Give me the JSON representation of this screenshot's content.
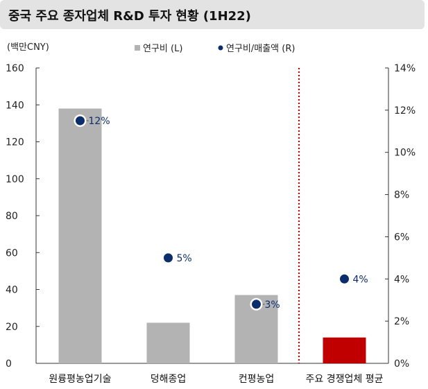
{
  "header": {
    "title": "중국 주요 종자업체 R&D 투자 현황 (1H22)"
  },
  "chart_data": {
    "type": "bar",
    "title": "중국 주요 종자업체 R&D 투자 현황 (1H22)",
    "ylabel_left": "(백만CNY)",
    "categories": [
      "원륭평농업기술",
      "덩해종업",
      "컨평농업",
      "주요 경쟁업체 평균"
    ],
    "series": [
      {
        "name": "연구비 (L)",
        "axis": "left",
        "kind": "bar",
        "values": [
          138,
          22,
          37,
          14
        ],
        "colors": [
          "#b3b3b3",
          "#b3b3b3",
          "#b3b3b3",
          "#c00000"
        ]
      },
      {
        "name": "연구비/매출액 (R)",
        "axis": "right",
        "kind": "scatter",
        "values": [
          11.5,
          5.0,
          2.8,
          4.0
        ],
        "labels": [
          "12%",
          "5%",
          "3%",
          "4%"
        ],
        "color": "#0b2d6b"
      }
    ],
    "ylim_left": [
      0,
      160
    ],
    "yticks_left": [
      0,
      20,
      40,
      60,
      80,
      100,
      120,
      140,
      160
    ],
    "ylim_right": [
      0,
      14
    ],
    "yticks_right_labels": [
      "0%",
      "2%",
      "4%",
      "6%",
      "8%",
      "10%",
      "12%",
      "14%"
    ],
    "divider_after_category": 3,
    "grid": false,
    "legend_position": "top-center"
  }
}
